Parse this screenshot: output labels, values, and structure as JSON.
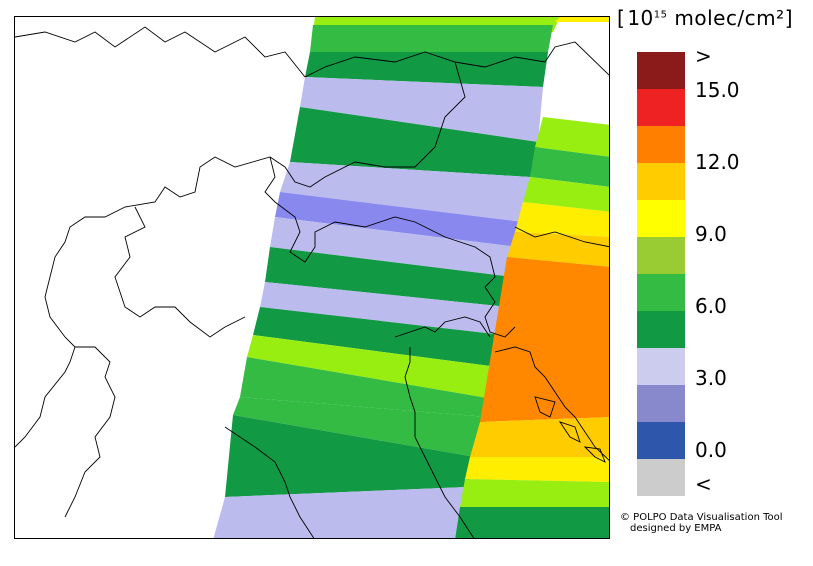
{
  "legend": {
    "title_main": "molec/cm",
    "title_base": "10",
    "title_exp": "15",
    "title_sq": "²",
    "labels": [
      ">",
      "15.0",
      "12.0",
      "9.0",
      "6.0",
      "3.0",
      "0.0",
      "<"
    ],
    "colors": [
      "#8b1a1a",
      "#ee2222",
      "#ff7f00",
      "#ffcc00",
      "#ffff00",
      "#99cc33",
      "#33bb44",
      "#119944",
      "#ccccee",
      "#8888cc",
      "#2e56aa",
      "#cccccc"
    ]
  },
  "credit": {
    "line1": "© POLPO Data Visualisation Tool",
    "line2": "designed by EMPA"
  },
  "map": {
    "swath_colors": {
      "dark_green": "#119944",
      "green": "#33bb44",
      "light_green": "#99ee11",
      "yellow": "#ffee00",
      "orange": "#ff8800",
      "gold": "#ffcc00",
      "lavender": "#bbbbee",
      "periwinkle": "#8888ee"
    }
  }
}
